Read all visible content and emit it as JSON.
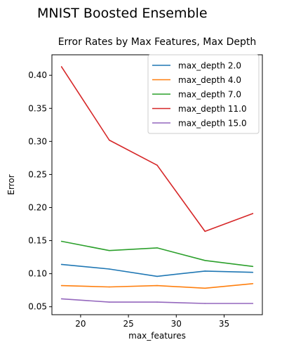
{
  "figure_title": "MNIST Boosted Ensemble",
  "chart_data": {
    "type": "line",
    "title": "Error Rates by Max Features, Max Depth",
    "xlabel": "max_features",
    "ylabel": "Error",
    "xlim": [
      17.0,
      39.0
    ],
    "ylim": [
      0.038,
      0.431
    ],
    "xticks": [
      20,
      25,
      30,
      35
    ],
    "yticks": [
      0.05,
      0.1,
      0.15,
      0.2,
      0.25,
      0.3,
      0.35,
      0.4
    ],
    "ytick_labels": [
      "0.05",
      "0.10",
      "0.15",
      "0.20",
      "0.25",
      "0.30",
      "0.35",
      "0.40"
    ],
    "x": [
      18,
      23,
      28,
      33,
      38
    ],
    "grid": false,
    "legend_position": "top-right",
    "series": [
      {
        "name": "max_depth 2.0",
        "color": "#1f77b4",
        "values": [
          0.114,
          0.107,
          0.096,
          0.104,
          0.102
        ]
      },
      {
        "name": "max_depth 4.0",
        "color": "#ff7f0e",
        "values": [
          0.082,
          0.08,
          0.082,
          0.078,
          0.085
        ]
      },
      {
        "name": "max_depth 7.0",
        "color": "#2ca02c",
        "values": [
          0.149,
          0.135,
          0.139,
          0.12,
          0.111
        ]
      },
      {
        "name": "max_depth 11.0",
        "color": "#d62728",
        "values": [
          0.413,
          0.302,
          0.264,
          0.164,
          0.191
        ]
      },
      {
        "name": "max_depth 15.0",
        "color": "#9467bd",
        "values": [
          0.062,
          0.057,
          0.057,
          0.055,
          0.055
        ]
      }
    ]
  }
}
